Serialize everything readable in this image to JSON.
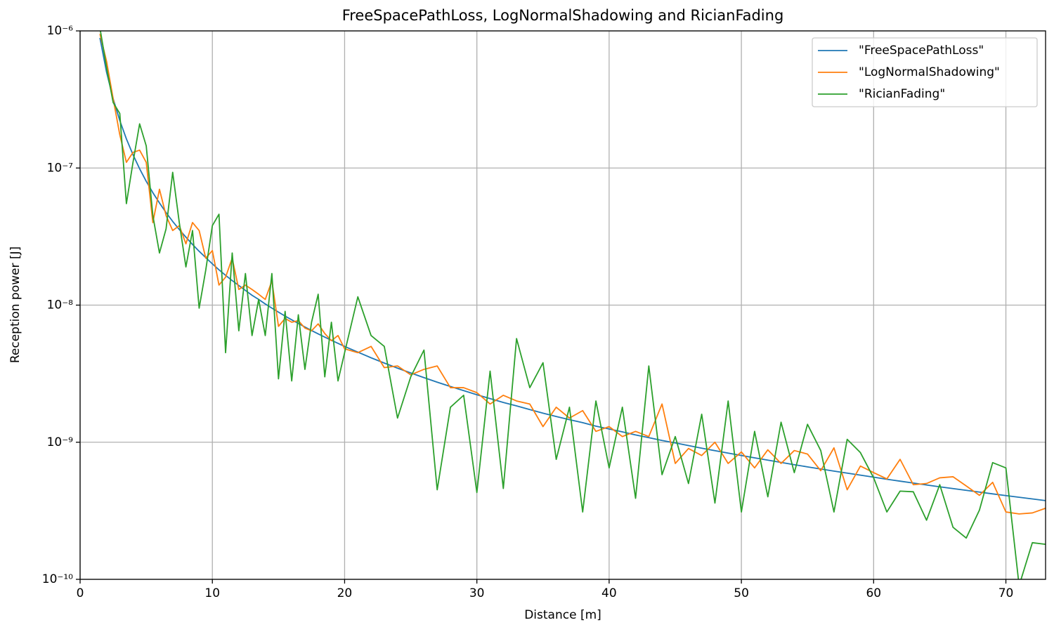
{
  "chart_data": {
    "type": "line",
    "title": "FreeSpacePathLoss, LogNormalShadowing and RicianFading",
    "x_label": "Distance [m]",
    "y_label": "Reception power [J]",
    "y_scale": "log",
    "grid": true,
    "legend": "upper right",
    "xlim": [
      0,
      73
    ],
    "xticks": [
      0,
      10,
      20,
      30,
      40,
      50,
      60,
      70
    ],
    "ylim": [
      1e-10,
      1e-06
    ],
    "yticks": [
      {
        "value": 1e-10,
        "label": "10⁻¹⁰"
      },
      {
        "value": 1e-09,
        "label": "10⁻⁹"
      },
      {
        "value": 1e-08,
        "label": "10⁻⁸"
      },
      {
        "value": 1e-07,
        "label": "10⁻⁷"
      },
      {
        "value": 1e-06,
        "label": "10⁻⁶"
      }
    ],
    "x": [
      1.5,
      2,
      2.5,
      3,
      3.5,
      4,
      4.5,
      5,
      5.5,
      6,
      6.5,
      7,
      7.5,
      8,
      8.5,
      9,
      9.5,
      10,
      10.5,
      11,
      11.5,
      12,
      12.5,
      13,
      13.5,
      14,
      14.5,
      15,
      15.5,
      16,
      16.5,
      17,
      17.5,
      18,
      18.5,
      19,
      19.5,
      20,
      21,
      22,
      23,
      24,
      25,
      26,
      27,
      28,
      29,
      30,
      31,
      32,
      33,
      34,
      35,
      36,
      37,
      38,
      39,
      40,
      41,
      42,
      43,
      44,
      45,
      46,
      47,
      48,
      49,
      50,
      51,
      52,
      53,
      54,
      55,
      56,
      57,
      58,
      59,
      60,
      61,
      62,
      63,
      64,
      65,
      66,
      67,
      68,
      69,
      70,
      71,
      72,
      73
    ],
    "series": [
      {
        "name": "\"FreeSpacePathLoss\"",
        "color": "#1f77b4",
        "values": [
          8.89e-07,
          5e-07,
          3.2e-07,
          2.22e-07,
          1.63e-07,
          1.25e-07,
          9.88e-08,
          8e-08,
          6.61e-08,
          5.56e-08,
          4.73e-08,
          4.08e-08,
          3.56e-08,
          3.13e-08,
          2.77e-08,
          2.47e-08,
          2.22e-08,
          2e-08,
          1.81e-08,
          1.65e-08,
          1.51e-08,
          1.39e-08,
          1.28e-08,
          1.18e-08,
          1.1e-08,
          1.02e-08,
          9.51e-09,
          8.89e-09,
          8.32e-09,
          7.81e-09,
          7.35e-09,
          6.92e-09,
          6.53e-09,
          6.17e-09,
          5.84e-09,
          5.54e-09,
          5.26e-09,
          5e-09,
          4.54e-09,
          4.13e-09,
          3.78e-09,
          3.47e-09,
          3.2e-09,
          2.96e-09,
          2.74e-09,
          2.55e-09,
          2.38e-09,
          2.22e-09,
          2.08e-09,
          1.95e-09,
          1.84e-09,
          1.73e-09,
          1.63e-09,
          1.54e-09,
          1.46e-09,
          1.39e-09,
          1.31e-09,
          1.25e-09,
          1.19e-09,
          1.13e-09,
          1.08e-09,
          1.03e-09,
          9.88e-10,
          9.45e-10,
          9.05e-10,
          8.68e-10,
          8.33e-10,
          8e-10,
          7.69e-10,
          7.4e-10,
          7.12e-10,
          6.86e-10,
          6.61e-10,
          6.38e-10,
          6.16e-10,
          5.95e-10,
          5.75e-10,
          5.56e-10,
          5.37e-10,
          5.2e-10,
          5.04e-10,
          4.88e-10,
          4.73e-10,
          4.59e-10,
          4.46e-10,
          4.33e-10,
          4.2e-10,
          4.08e-10,
          3.97e-10,
          3.86e-10,
          3.75e-10
        ]
      },
      {
        "name": "\"LogNormalShadowing\"",
        "color": "#ff7f0e",
        "values": [
          9.5e-07,
          6e-07,
          3.2e-07,
          1.75e-07,
          1.1e-07,
          1.3e-07,
          1.35e-07,
          1.1e-07,
          4e-08,
          7e-08,
          4.5e-08,
          3.5e-08,
          3.8e-08,
          2.8e-08,
          4e-08,
          3.5e-08,
          2.2e-08,
          2.5e-08,
          1.4e-08,
          1.6e-08,
          2.2e-08,
          1.3e-08,
          1.4e-08,
          1.3e-08,
          1.2e-08,
          1.1e-08,
          1.5e-08,
          7e-09,
          8e-09,
          7.5e-09,
          7.7e-09,
          6.8e-09,
          6.5e-09,
          7.3e-09,
          6.2e-09,
          5.5e-09,
          6e-09,
          4.8e-09,
          4.5e-09,
          5e-09,
          3.5e-09,
          3.6e-09,
          3.1e-09,
          3.4e-09,
          3.6e-09,
          2.5e-09,
          2.5e-09,
          2.3e-09,
          1.9e-09,
          2.2e-09,
          2e-09,
          1.9e-09,
          1.3e-09,
          1.8e-09,
          1.5e-09,
          1.7e-09,
          1.2e-09,
          1.3e-09,
          1.1e-09,
          1.2e-09,
          1.1e-09,
          1.9e-09,
          7e-10,
          9e-10,
          8e-10,
          1e-09,
          7e-10,
          8.5e-10,
          6.5e-10,
          8.8e-10,
          7e-10,
          8.7e-10,
          8.2e-10,
          6.2e-10,
          9.1e-10,
          4.5e-10,
          6.7e-10,
          6e-10,
          5.4e-10,
          7.5e-10,
          4.9e-10,
          5e-10,
          5.5e-10,
          5.6e-10,
          4.8e-10,
          4.1e-10,
          5.1e-10,
          3.1e-10,
          3e-10,
          3.05e-10,
          3.3e-10
        ]
      },
      {
        "name": "\"RicianFading\"",
        "color": "#2ca02c",
        "values": [
          1.05e-06,
          5.4e-07,
          3e-07,
          2.5e-07,
          5.5e-08,
          1.1e-07,
          2.1e-07,
          1.45e-07,
          4.5e-08,
          2.4e-08,
          3.6e-08,
          9.3e-08,
          4e-08,
          1.9e-08,
          3.5e-08,
          9.5e-09,
          1.8e-08,
          3.8e-08,
          4.6e-08,
          4.5e-09,
          2.4e-08,
          6.5e-09,
          1.7e-08,
          6e-09,
          1.1e-08,
          6e-09,
          1.7e-08,
          2.9e-09,
          9e-09,
          2.8e-09,
          8.5e-09,
          3.4e-09,
          7.5e-09,
          1.2e-08,
          3e-09,
          7.5e-09,
          2.8e-09,
          4.5e-09,
          1.15e-08,
          6e-09,
          5e-09,
          1.5e-09,
          3e-09,
          4.7e-09,
          4.5e-10,
          1.8e-09,
          2.2e-09,
          4.3e-10,
          3.3e-09,
          4.6e-10,
          5.7e-09,
          2.5e-09,
          3.8e-09,
          7.5e-10,
          1.8e-09,
          3.1e-10,
          2e-09,
          6.5e-10,
          1.8e-09,
          3.9e-10,
          3.6e-09,
          5.8e-10,
          1.1e-09,
          5e-10,
          1.6e-09,
          3.6e-10,
          2e-09,
          3.1e-10,
          1.2e-09,
          4e-10,
          1.4e-09,
          6e-10,
          1.35e-09,
          8.7e-10,
          3.1e-10,
          1.05e-09,
          8.4e-10,
          5.5e-10,
          3.1e-10,
          4.4e-10,
          4.35e-10,
          2.7e-10,
          4.9e-10,
          2.4e-10,
          2e-10,
          3.2e-10,
          7.1e-10,
          6.5e-10,
          9e-11,
          1.85e-10,
          1.8e-10
        ]
      }
    ]
  }
}
